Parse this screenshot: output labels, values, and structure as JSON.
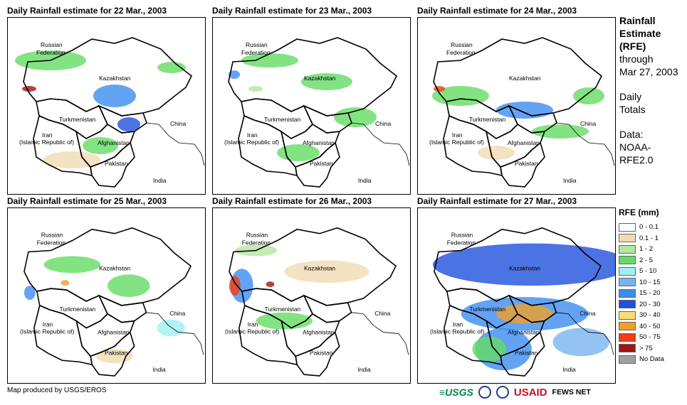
{
  "panels": [
    {
      "title": "Daily Rainfall estimate for 22 Mar., 2003"
    },
    {
      "title": "Daily Rainfall estimate for 23 Mar., 2003"
    },
    {
      "title": "Daily Rainfall estimate for 24 Mar., 2003"
    },
    {
      "title": "Daily Rainfall estimate for 25 Mar., 2003"
    },
    {
      "title": "Daily Rainfall estimate for 26 Mar., 2003"
    },
    {
      "title": "Daily Rainfall estimate for 27 Mar., 2003"
    }
  ],
  "map_labels": {
    "russia_1": "Russian",
    "russia_2": "Federation",
    "kazakhstan": "Kazakhstan",
    "turkmenistan": "Turkmenistan",
    "iran_1": "Iran",
    "iran_2": "(Islamic Republic of)",
    "afghanistan": "Afghanistan",
    "pakistan": "Pakistan",
    "china": "China",
    "india": "India"
  },
  "side_info": {
    "title_1": "Rainfall",
    "title_2": "Estimate",
    "title_3": "(RFE)",
    "through": "through",
    "date": "Mar 27, 2003",
    "totals_1": "Daily",
    "totals_2": "Totals",
    "data_1": "Data:",
    "data_2": "NOAA-",
    "data_3": "RFE2.0"
  },
  "legend": {
    "title": "RFE (mm)",
    "items": [
      {
        "label": "0 - 0.1",
        "color": "#ffffff"
      },
      {
        "label": "0.1 - 1",
        "color": "#f0dcb4"
      },
      {
        "label": "1 - 2",
        "color": "#b4e6a0"
      },
      {
        "label": "2 - 5",
        "color": "#64dc64"
      },
      {
        "label": "5 - 10",
        "color": "#a0f0f0"
      },
      {
        "label": "10 - 15",
        "color": "#78b4f0"
      },
      {
        "label": "15 - 20",
        "color": "#3c8cf0"
      },
      {
        "label": "20 - 30",
        "color": "#1e50dc"
      },
      {
        "label": "30 - 40",
        "color": "#fadc78"
      },
      {
        "label": "40 - 50",
        "color": "#f0a028"
      },
      {
        "label": "50 - 75",
        "color": "#f03c14"
      },
      {
        "label": "> 75",
        "color": "#a01414"
      },
      {
        "label": "No Data",
        "color": "#a0a0a0"
      }
    ]
  },
  "footer": {
    "produced_by": "Map produced by USGS/EROS"
  },
  "logos": {
    "usgs": "≡USGS",
    "usaid": "USAID",
    "fews": "FEWS NET"
  }
}
